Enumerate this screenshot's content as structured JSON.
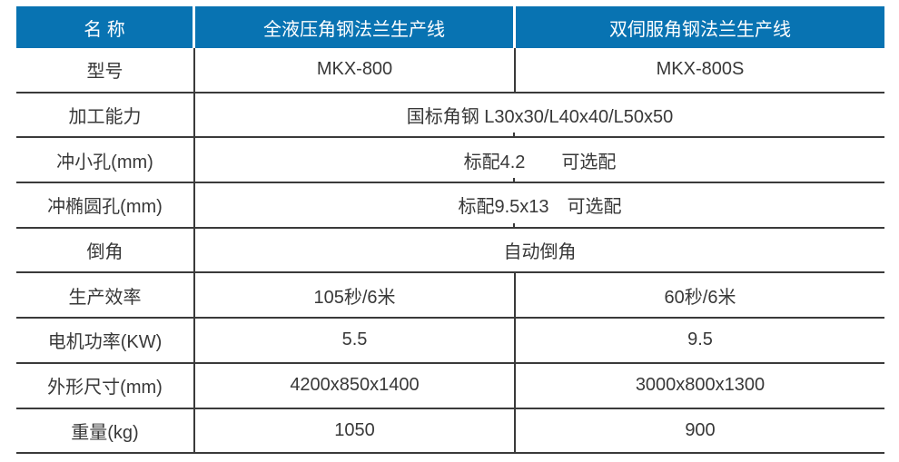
{
  "table": {
    "header": {
      "name": "名 称",
      "product_left": "全液压角钢法兰生产线",
      "product_right": "双伺服角钢法兰生产线"
    },
    "rows": [
      {
        "label": "型号",
        "left": "MKX-800",
        "right": "MKX-800S"
      },
      {
        "label": "加工能力",
        "merged": "国标角钢 L30x30/L40x40/L50x50"
      },
      {
        "label": "冲小孔(mm)",
        "merged": "标配4.2　　可选配"
      },
      {
        "label": "冲椭圆孔(mm)",
        "merged": "标配9.5x13　可选配"
      },
      {
        "label": "倒角",
        "merged": "自动倒角"
      },
      {
        "label": "生产效率",
        "left": "105秒/6米",
        "right": "60秒/6米"
      },
      {
        "label": "电机功率(KW)",
        "left": "5.5",
        "right": "9.5"
      },
      {
        "label": "外形尺寸(mm)",
        "left": "4200x850x1400",
        "right": "3000x800x1300"
      },
      {
        "label": "重量(kg)",
        "left": "1050",
        "right": "900"
      }
    ],
    "colors": {
      "header_bg": "#0873B2",
      "header_text": "#FFFFFF",
      "body_text": "#383838",
      "grid_line": "#3A3A3A"
    }
  }
}
